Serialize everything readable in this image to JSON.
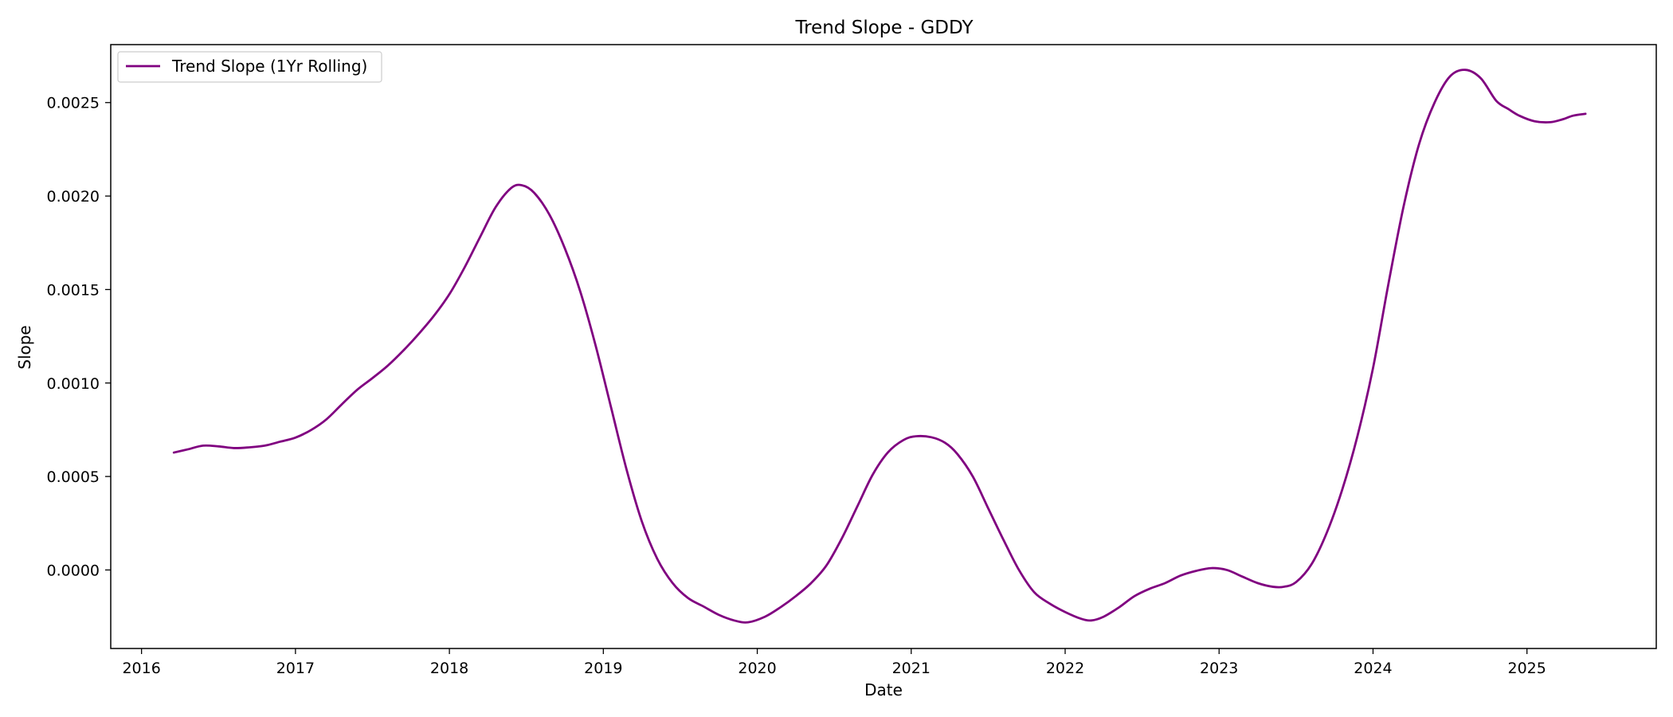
{
  "chart_data": {
    "type": "line",
    "title": "Trend Slope - GDDY",
    "xlabel": "Date",
    "ylabel": "Slope",
    "xlim": [
      2015.8,
      2025.84
    ],
    "ylim": [
      -0.00042,
      0.00281
    ],
    "x_ticks": [
      2016,
      2017,
      2018,
      2019,
      2020,
      2021,
      2022,
      2023,
      2024,
      2025
    ],
    "x_tick_labels": [
      "2016",
      "2017",
      "2018",
      "2019",
      "2020",
      "2021",
      "2022",
      "2023",
      "2024",
      "2025"
    ],
    "y_ticks": [
      0.0,
      0.0005,
      0.001,
      0.0015,
      0.002,
      0.0025
    ],
    "y_tick_labels": [
      "0.0000",
      "0.0005",
      "0.0010",
      "0.0015",
      "0.0020",
      "0.0025"
    ],
    "grid": false,
    "legend": {
      "position": "top-left"
    },
    "series": [
      {
        "name": "Trend Slope (1Yr Rolling)",
        "color": "#800080",
        "x": [
          2016.21,
          2016.3,
          2016.4,
          2016.5,
          2016.6,
          2016.7,
          2016.8,
          2016.9,
          2017.0,
          2017.1,
          2017.2,
          2017.3,
          2017.4,
          2017.5,
          2017.6,
          2017.7,
          2017.8,
          2017.9,
          2018.0,
          2018.1,
          2018.2,
          2018.3,
          2018.4,
          2018.47,
          2018.55,
          2018.65,
          2018.75,
          2018.85,
          2018.95,
          2019.05,
          2019.15,
          2019.25,
          2019.35,
          2019.45,
          2019.55,
          2019.65,
          2019.75,
          2019.85,
          2019.94,
          2020.05,
          2020.15,
          2020.25,
          2020.35,
          2020.45,
          2020.55,
          2020.65,
          2020.75,
          2020.85,
          2020.95,
          2021.03,
          2021.13,
          2021.22,
          2021.3,
          2021.4,
          2021.5,
          2021.6,
          2021.7,
          2021.8,
          2021.9,
          2022.0,
          2022.1,
          2022.17,
          2022.25,
          2022.35,
          2022.45,
          2022.55,
          2022.65,
          2022.75,
          2022.85,
          2022.95,
          2023.05,
          2023.15,
          2023.25,
          2023.35,
          2023.42,
          2023.5,
          2023.6,
          2023.7,
          2023.8,
          2023.9,
          2024.0,
          2024.1,
          2024.2,
          2024.3,
          2024.4,
          2024.5,
          2024.6,
          2024.7,
          2024.8,
          2024.88,
          2024.95,
          2025.05,
          2025.15,
          2025.23,
          2025.3,
          2025.38
        ],
        "y": [
          0.000628,
          0.000645,
          0.000665,
          0.000661,
          0.000652,
          0.000656,
          0.000665,
          0.000686,
          0.000708,
          0.000748,
          0.000805,
          0.000885,
          0.000963,
          0.001026,
          0.001093,
          0.001173,
          0.001262,
          0.00136,
          0.001475,
          0.00162,
          0.001782,
          0.00194,
          0.002042,
          0.002058,
          0.002018,
          0.0019,
          0.00172,
          0.00149,
          0.0012,
          0.00087,
          0.00054,
          0.00026,
          6e-05,
          -7e-05,
          -0.00015,
          -0.000195,
          -0.00024,
          -0.00027,
          -0.00028,
          -0.00025,
          -0.0002,
          -0.00014,
          -7e-05,
          2.5e-05,
          0.00017,
          0.00034,
          0.00051,
          0.00063,
          0.000695,
          0.000715,
          0.00071,
          0.00068,
          0.00062,
          0.0005,
          0.00033,
          0.00016,
          0.0,
          -0.00012,
          -0.00018,
          -0.000225,
          -0.00026,
          -0.00027,
          -0.00025,
          -0.0002,
          -0.00014,
          -0.0001,
          -7e-05,
          -3e-05,
          -5e-06,
          1e-05,
          0.0,
          -3.5e-05,
          -7e-05,
          -9e-05,
          -9e-05,
          -6.5e-05,
          3e-05,
          0.0002,
          0.00043,
          0.00072,
          0.00108,
          0.00153,
          0.00195,
          0.00228,
          0.0025,
          0.00264,
          0.002675,
          0.00263,
          0.00251,
          0.002465,
          0.00243,
          0.0024,
          0.002395,
          0.00241,
          0.00243,
          0.00244
        ]
      }
    ]
  }
}
